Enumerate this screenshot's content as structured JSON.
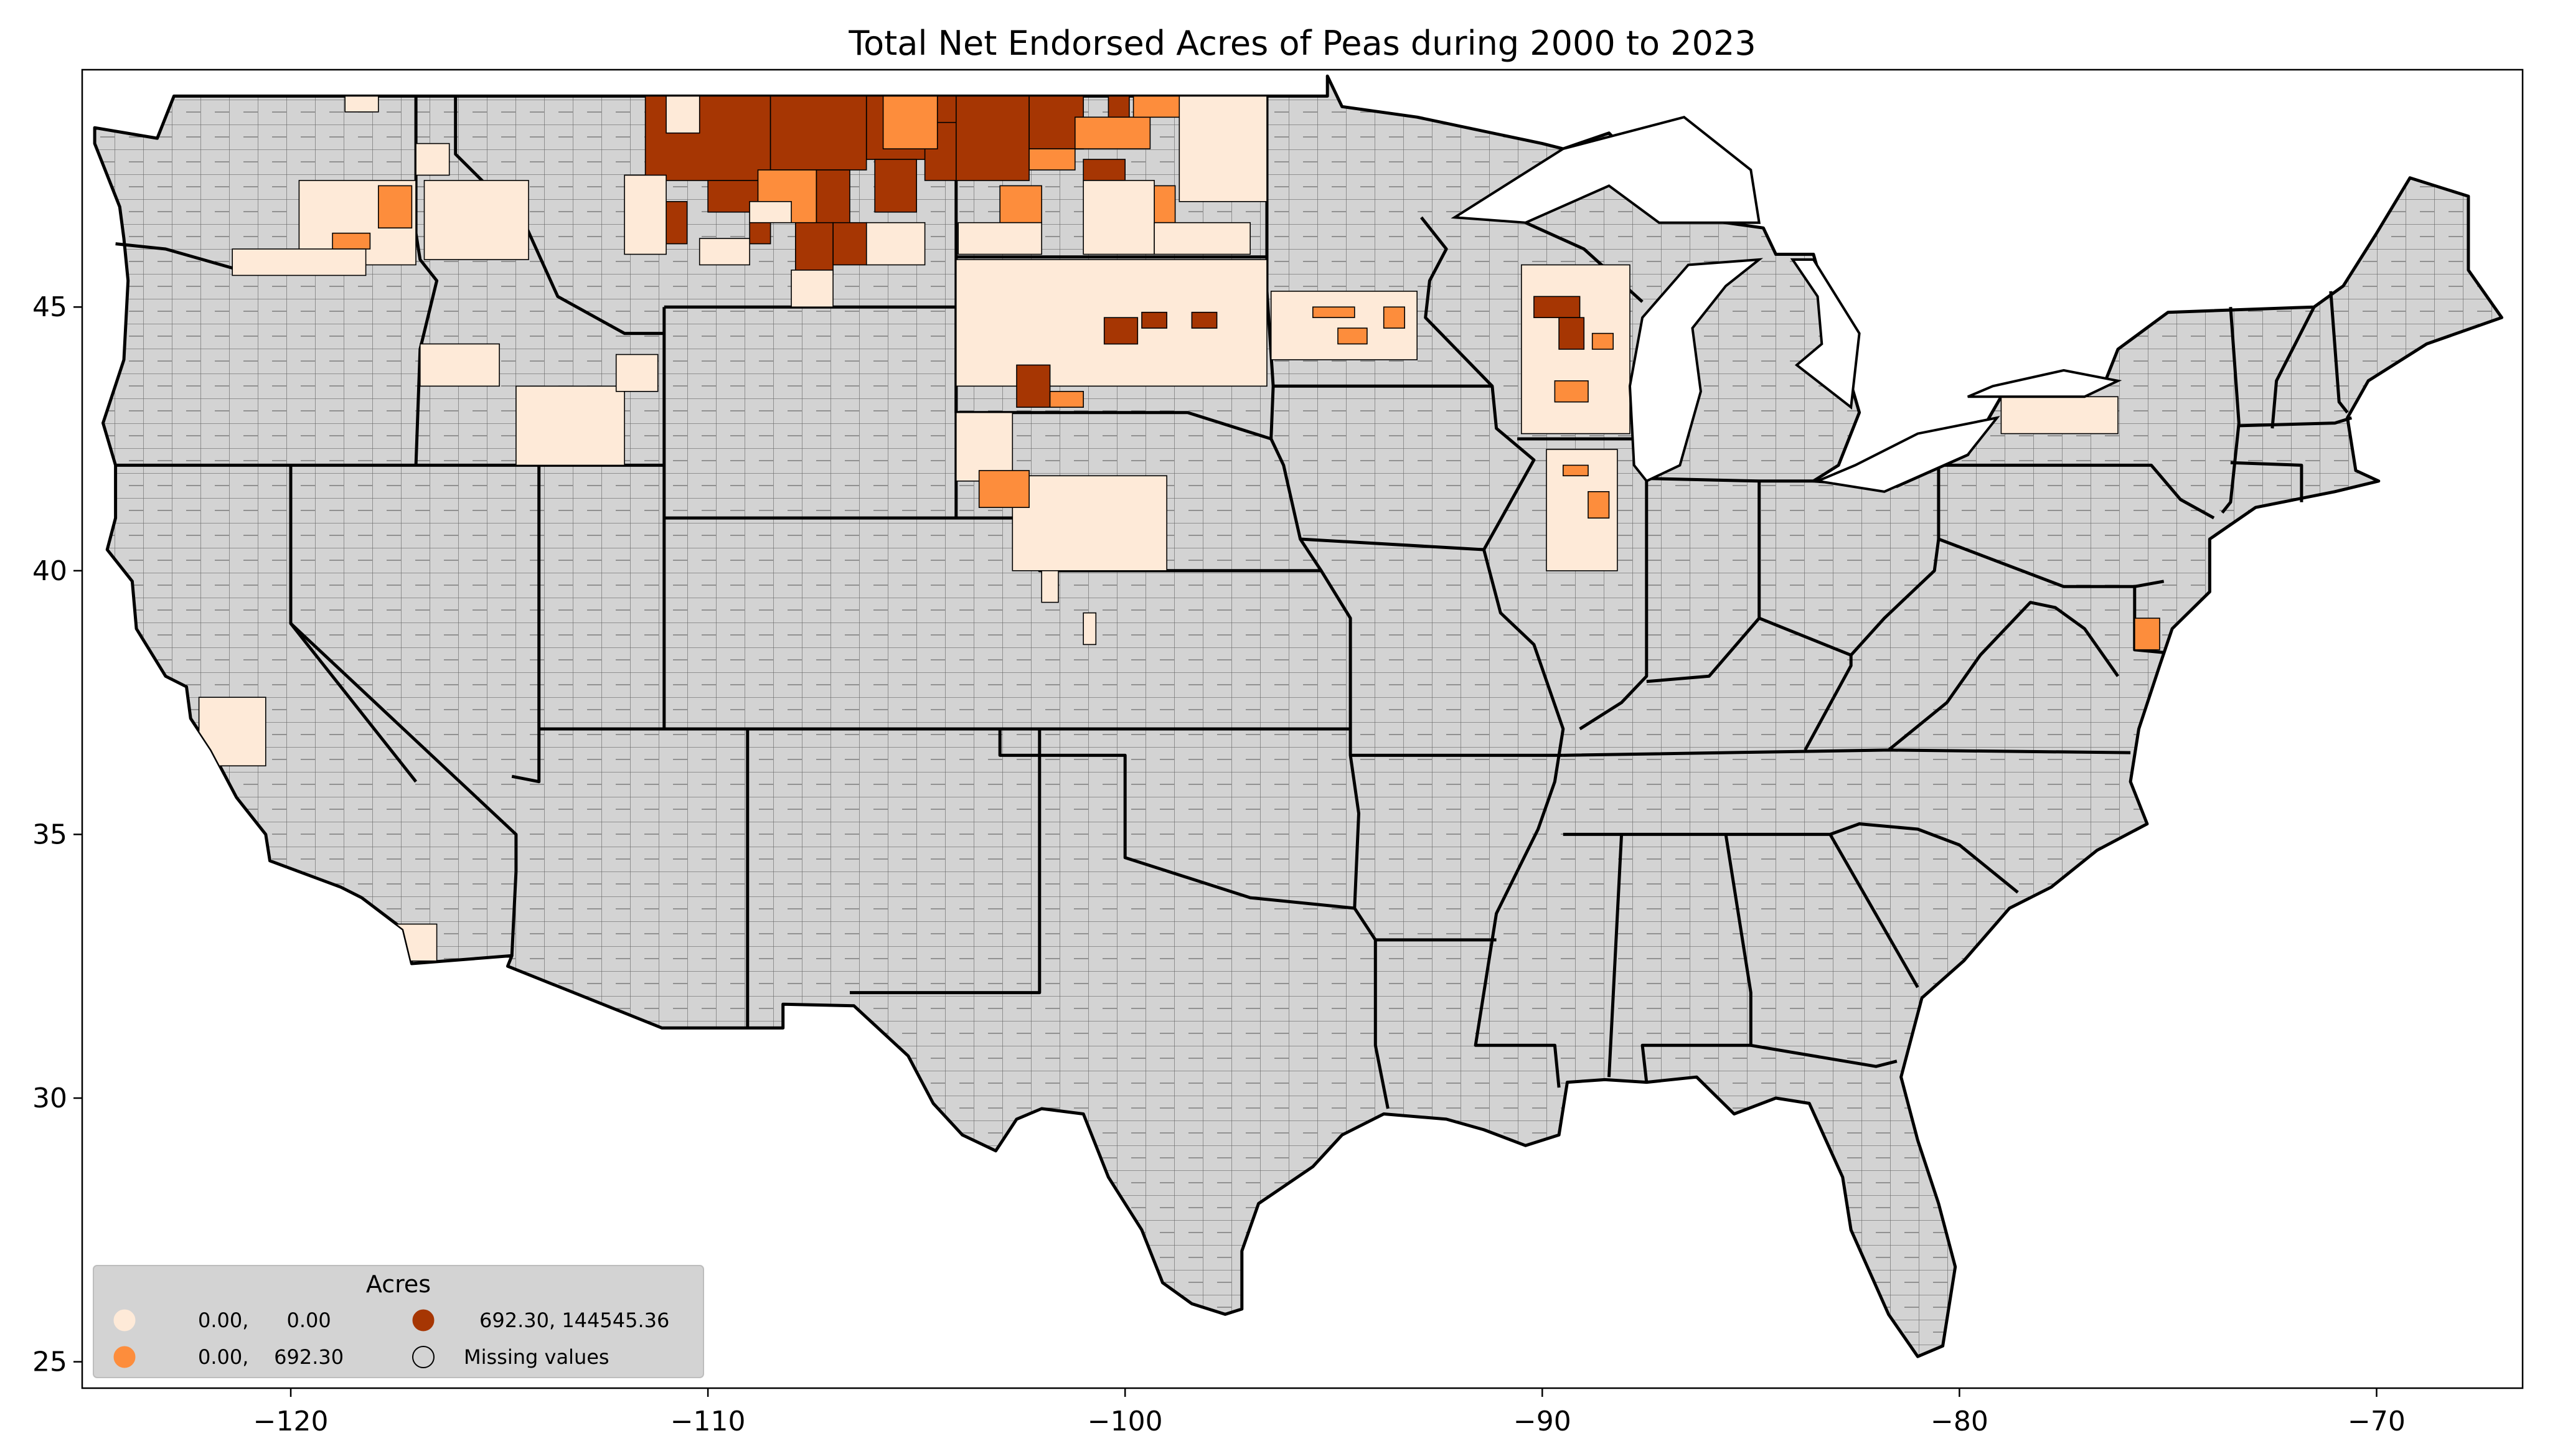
{
  "title": "Total Net Endorsed Acres of Peas during 2000 to 2023",
  "axes": {
    "x_ticks": [
      "−120",
      "−110",
      "−100",
      "−90",
      "−80",
      "−70"
    ],
    "x_values": [
      -120,
      -110,
      -100,
      -90,
      -80,
      -70
    ],
    "y_ticks": [
      "45",
      "40",
      "35",
      "30",
      "25"
    ],
    "y_values": [
      45,
      40,
      35,
      30,
      25
    ],
    "xlim": [
      -125,
      -66.5
    ],
    "ylim": [
      24.5,
      49.5
    ]
  },
  "legend": {
    "title": "Acres",
    "items": [
      {
        "label": "0.00,      0.00",
        "color": "#feead8"
      },
      {
        "label": "0.00,    692.30",
        "color": "#fd8d3c"
      },
      {
        "label": "692.30, 144545.36",
        "color": "#a63603"
      },
      {
        "label": "Missing values",
        "color": "#d3d3d3"
      }
    ]
  },
  "colors": {
    "missing": "#d3d3d3",
    "low": "#feead8",
    "mid": "#fd8d3c",
    "high": "#a63603",
    "border": "#000000"
  }
}
